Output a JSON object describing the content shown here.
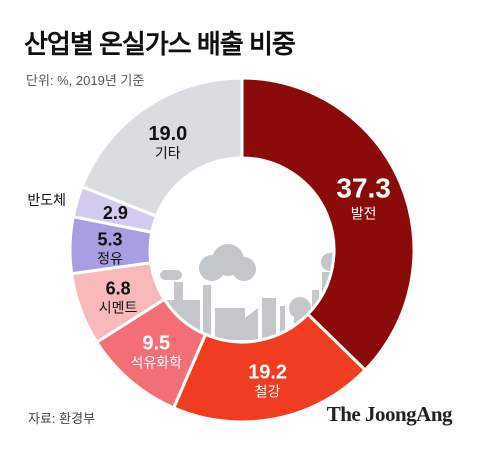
{
  "title": "산업별 온실가스 배출 비중",
  "unit": "단위: %, 2019년 기준",
  "source": "자료: 환경부",
  "brand": "The JoongAng",
  "chart_data": {
    "type": "pie",
    "categories": [
      "발전",
      "철강",
      "석유화학",
      "시멘트",
      "정유",
      "반도체",
      "기타"
    ],
    "values": [
      37.3,
      19.2,
      9.5,
      6.8,
      5.3,
      2.9,
      19.0
    ],
    "value_labels": [
      "37.3",
      "19.2",
      "9.5",
      "6.8",
      "5.3",
      "2.9",
      "19.0"
    ],
    "colors": [
      "#8b0a0a",
      "#f03c20",
      "#f26f78",
      "#f7b9b9",
      "#a99ee2",
      "#d3cbef",
      "#d9dde0"
    ],
    "label_colors": [
      "#ffffff",
      "#ffffff",
      "#ffffff",
      "#111111",
      "#111111",
      "#111111",
      "#111111"
    ],
    "donut": true
  }
}
